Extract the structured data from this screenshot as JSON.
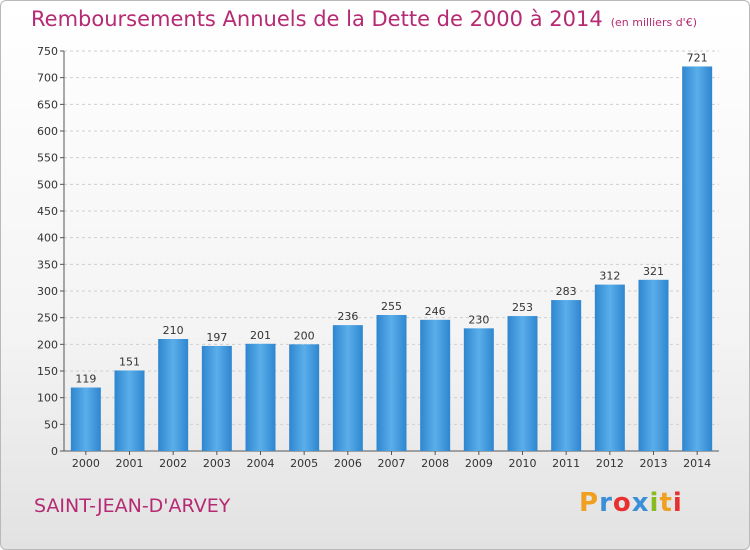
{
  "header": {
    "title": "Remboursements Annuels de la Dette de 2000 à 2014",
    "unit": "(en milliers d'€)"
  },
  "footer": {
    "commune": "SAINT-JEAN-D'ARVEY",
    "logo": {
      "letters": [
        "P",
        "r",
        "o",
        "x",
        "i",
        "t",
        "i"
      ],
      "colors": [
        "#f0a020",
        "#3a8fd8",
        "#e83030",
        "#3a8fd8",
        "#88bb22",
        "#f0a020",
        "#e83030"
      ]
    }
  },
  "chart_data": {
    "type": "bar",
    "title": "Remboursements Annuels de la Dette de 2000 à 2014",
    "categories": [
      "2000",
      "2001",
      "2002",
      "2003",
      "2004",
      "2005",
      "2006",
      "2007",
      "2008",
      "2009",
      "2010",
      "2011",
      "2012",
      "2013",
      "2014"
    ],
    "values": [
      119,
      151,
      210,
      197,
      201,
      200,
      236,
      255,
      246,
      230,
      253,
      283,
      312,
      321,
      721
    ],
    "ylim": [
      0,
      750
    ],
    "yticks": [
      0,
      50,
      100,
      150,
      200,
      250,
      300,
      350,
      400,
      450,
      500,
      550,
      600,
      650,
      700,
      750
    ],
    "grid": true,
    "bar_color": "#4a9ee0"
  }
}
